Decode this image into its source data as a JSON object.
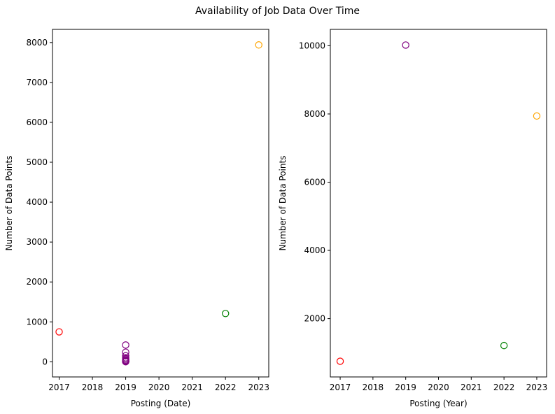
{
  "figure": {
    "title": "Availability of Job Data Over Time"
  },
  "chart_data": [
    {
      "type": "scatter",
      "title": "",
      "xlabel": "Posting (Date)",
      "ylabel": "Number of Data Points",
      "xlim": [
        2016.8,
        2023.3
      ],
      "ylim": [
        -380,
        8330
      ],
      "xticks": [
        2017,
        2018,
        2019,
        2020,
        2021,
        2022,
        2023
      ],
      "yticks": [
        0,
        1000,
        2000,
        3000,
        4000,
        5000,
        6000,
        7000,
        8000
      ],
      "grid": false,
      "legend": "none",
      "marker": "hollow circle",
      "points": [
        {
          "x": 2017,
          "y": 750,
          "color": "#ff0000"
        },
        {
          "x": 2019,
          "y": 420,
          "color": "#800080"
        },
        {
          "x": 2019,
          "y": 240,
          "color": "#800080"
        },
        {
          "x": 2019,
          "y": 150,
          "color": "#800080"
        },
        {
          "x": 2019,
          "y": 100,
          "color": "#800080"
        },
        {
          "x": 2019,
          "y": 70,
          "color": "#800080"
        },
        {
          "x": 2019,
          "y": 45,
          "color": "#800080"
        },
        {
          "x": 2019,
          "y": 25,
          "color": "#800080"
        },
        {
          "x": 2019,
          "y": 12,
          "color": "#800080"
        },
        {
          "x": 2019,
          "y": 5,
          "color": "#800080"
        },
        {
          "x": 2019,
          "y": 1,
          "color": "#800080"
        },
        {
          "x": 2022,
          "y": 1210,
          "color": "#008000"
        },
        {
          "x": 2023,
          "y": 7940,
          "color": "#ffa500"
        }
      ]
    },
    {
      "type": "scatter",
      "title": "",
      "xlabel": "Posting (Year)",
      "ylabel": "Number of Data Points",
      "xlim": [
        2016.7,
        2023.3
      ],
      "ylim": [
        290,
        10480
      ],
      "xticks": [
        2017,
        2018,
        2019,
        2020,
        2021,
        2022,
        2023
      ],
      "yticks": [
        2000,
        4000,
        6000,
        8000,
        10000
      ],
      "grid": false,
      "legend": "none",
      "marker": "hollow circle",
      "points": [
        {
          "x": 2017,
          "y": 750,
          "color": "#ff0000"
        },
        {
          "x": 2019,
          "y": 10020,
          "color": "#800080"
        },
        {
          "x": 2022,
          "y": 1210,
          "color": "#008000"
        },
        {
          "x": 2023,
          "y": 7940,
          "color": "#ffa500"
        }
      ]
    }
  ]
}
